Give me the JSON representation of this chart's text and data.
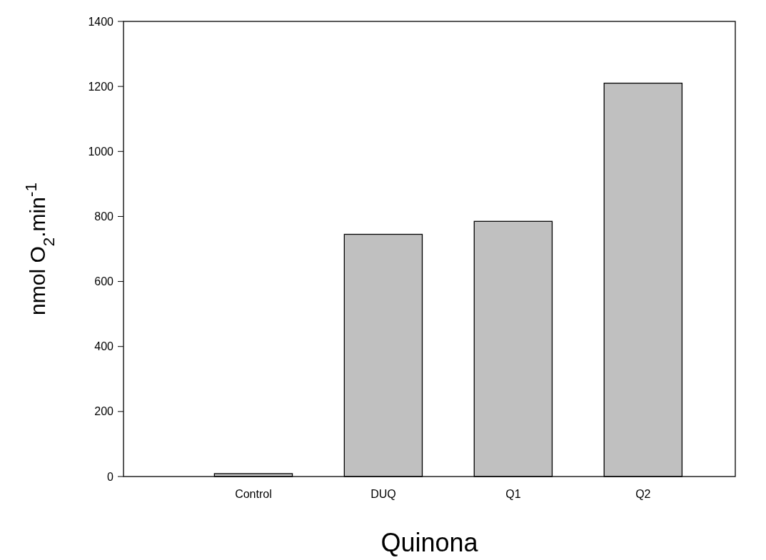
{
  "chart_data": {
    "type": "bar",
    "xlabel": "Quinona",
    "ylabel": "nmol O$_{2}$.min$^{-1}$",
    "categories": [
      null,
      "Control",
      "DUQ",
      "Q1",
      "Q2"
    ],
    "values": [
      null,
      9,
      745,
      785,
      1210
    ],
    "color": "#c0c0c0",
    "ylim": [
      0,
      1400
    ],
    "yticks": [
      0,
      200,
      400,
      600,
      800,
      1000,
      1200,
      1400
    ],
    "grid": false
  }
}
